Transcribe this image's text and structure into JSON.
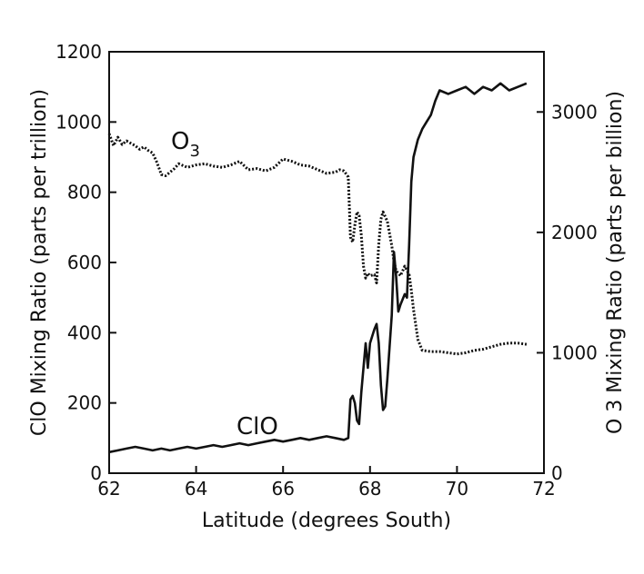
{
  "chart_data": {
    "type": "line",
    "title": "",
    "xlabel": "Latitude (degrees South)",
    "ylabel_left": "ClO Mixing Ratio (parts per trillion)",
    "ylabel_right": "O 3 Mixing Ratio (parts per billion)",
    "xlim": [
      62,
      72
    ],
    "ylim_left": [
      0,
      1200
    ],
    "ylim_right": [
      0,
      3500
    ],
    "x_ticks": [
      "62",
      "64",
      "66",
      "68",
      "70",
      "72"
    ],
    "y_left_ticks": [
      "0",
      "200",
      "400",
      "600",
      "800",
      "1000",
      "1200"
    ],
    "y_right_ticks": [
      "0",
      "1000",
      "2000",
      "3000"
    ],
    "grid": false,
    "series": [
      {
        "name": "ClO",
        "label_text": "ClO",
        "axis": "left",
        "style": "solid",
        "color": "#111111",
        "points": [
          [
            62.0,
            60
          ],
          [
            62.2,
            65
          ],
          [
            62.4,
            70
          ],
          [
            62.6,
            75
          ],
          [
            62.8,
            70
          ],
          [
            63.0,
            65
          ],
          [
            63.2,
            70
          ],
          [
            63.4,
            65
          ],
          [
            63.6,
            70
          ],
          [
            63.8,
            75
          ],
          [
            64.0,
            70
          ],
          [
            64.2,
            75
          ],
          [
            64.4,
            80
          ],
          [
            64.6,
            75
          ],
          [
            64.8,
            80
          ],
          [
            65.0,
            85
          ],
          [
            65.2,
            80
          ],
          [
            65.4,
            85
          ],
          [
            65.6,
            90
          ],
          [
            65.8,
            95
          ],
          [
            66.0,
            90
          ],
          [
            66.2,
            95
          ],
          [
            66.4,
            100
          ],
          [
            66.6,
            95
          ],
          [
            66.8,
            100
          ],
          [
            67.0,
            105
          ],
          [
            67.2,
            100
          ],
          [
            67.4,
            95
          ],
          [
            67.5,
            100
          ],
          [
            67.55,
            210
          ],
          [
            67.6,
            220
          ],
          [
            67.65,
            200
          ],
          [
            67.7,
            150
          ],
          [
            67.75,
            140
          ],
          [
            67.8,
            230
          ],
          [
            67.85,
            300
          ],
          [
            67.9,
            370
          ],
          [
            67.95,
            300
          ],
          [
            68.0,
            370
          ],
          [
            68.1,
            410
          ],
          [
            68.15,
            425
          ],
          [
            68.2,
            370
          ],
          [
            68.25,
            250
          ],
          [
            68.3,
            180
          ],
          [
            68.35,
            190
          ],
          [
            68.4,
            270
          ],
          [
            68.5,
            450
          ],
          [
            68.55,
            630
          ],
          [
            68.6,
            560
          ],
          [
            68.65,
            460
          ],
          [
            68.7,
            480
          ],
          [
            68.8,
            510
          ],
          [
            68.85,
            500
          ],
          [
            68.9,
            650
          ],
          [
            68.95,
            830
          ],
          [
            69.0,
            900
          ],
          [
            69.1,
            950
          ],
          [
            69.2,
            980
          ],
          [
            69.3,
            1000
          ],
          [
            69.4,
            1020
          ],
          [
            69.5,
            1060
          ],
          [
            69.6,
            1090
          ],
          [
            69.8,
            1080
          ],
          [
            70.0,
            1090
          ],
          [
            70.2,
            1100
          ],
          [
            70.4,
            1080
          ],
          [
            70.6,
            1100
          ],
          [
            70.8,
            1090
          ],
          [
            71.0,
            1110
          ],
          [
            71.2,
            1090
          ],
          [
            71.4,
            1100
          ],
          [
            71.6,
            1110
          ]
        ]
      },
      {
        "name": "O3",
        "label_text": "O",
        "label_subscript": "3",
        "axis": "right",
        "style": "dotted",
        "color": "#111111",
        "points": [
          [
            62.0,
            2820
          ],
          [
            62.1,
            2720
          ],
          [
            62.2,
            2790
          ],
          [
            62.3,
            2730
          ],
          [
            62.4,
            2760
          ],
          [
            62.5,
            2740
          ],
          [
            62.6,
            2720
          ],
          [
            62.7,
            2690
          ],
          [
            62.8,
            2710
          ],
          [
            62.9,
            2680
          ],
          [
            63.0,
            2660
          ],
          [
            63.1,
            2580
          ],
          [
            63.2,
            2480
          ],
          [
            63.3,
            2470
          ],
          [
            63.4,
            2500
          ],
          [
            63.5,
            2530
          ],
          [
            63.6,
            2570
          ],
          [
            63.8,
            2540
          ],
          [
            64.0,
            2560
          ],
          [
            64.2,
            2570
          ],
          [
            64.4,
            2550
          ],
          [
            64.6,
            2540
          ],
          [
            64.8,
            2560
          ],
          [
            65.0,
            2590
          ],
          [
            65.2,
            2520
          ],
          [
            65.4,
            2530
          ],
          [
            65.6,
            2510
          ],
          [
            65.8,
            2540
          ],
          [
            66.0,
            2610
          ],
          [
            66.2,
            2590
          ],
          [
            66.4,
            2560
          ],
          [
            66.6,
            2550
          ],
          [
            66.8,
            2520
          ],
          [
            67.0,
            2490
          ],
          [
            67.2,
            2500
          ],
          [
            67.3,
            2520
          ],
          [
            67.4,
            2510
          ],
          [
            67.5,
            2460
          ],
          [
            67.55,
            1960
          ],
          [
            67.6,
            1920
          ],
          [
            67.65,
            2060
          ],
          [
            67.7,
            2170
          ],
          [
            67.75,
            2140
          ],
          [
            67.8,
            1980
          ],
          [
            67.85,
            1720
          ],
          [
            67.9,
            1620
          ],
          [
            67.95,
            1660
          ],
          [
            68.0,
            1640
          ],
          [
            68.1,
            1650
          ],
          [
            68.15,
            1580
          ],
          [
            68.2,
            1900
          ],
          [
            68.25,
            2110
          ],
          [
            68.3,
            2170
          ],
          [
            68.4,
            2090
          ],
          [
            68.5,
            1890
          ],
          [
            68.55,
            1760
          ],
          [
            68.6,
            1680
          ],
          [
            68.7,
            1640
          ],
          [
            68.8,
            1720
          ],
          [
            68.9,
            1650
          ],
          [
            68.95,
            1520
          ],
          [
            69.0,
            1360
          ],
          [
            69.1,
            1110
          ],
          [
            69.2,
            1020
          ],
          [
            69.4,
            1010
          ],
          [
            69.6,
            1010
          ],
          [
            69.8,
            1000
          ],
          [
            70.0,
            990
          ],
          [
            70.2,
            1000
          ],
          [
            70.4,
            1020
          ],
          [
            70.6,
            1030
          ],
          [
            70.8,
            1050
          ],
          [
            71.0,
            1070
          ],
          [
            71.2,
            1080
          ],
          [
            71.4,
            1080
          ],
          [
            71.6,
            1070
          ]
        ]
      }
    ]
  }
}
